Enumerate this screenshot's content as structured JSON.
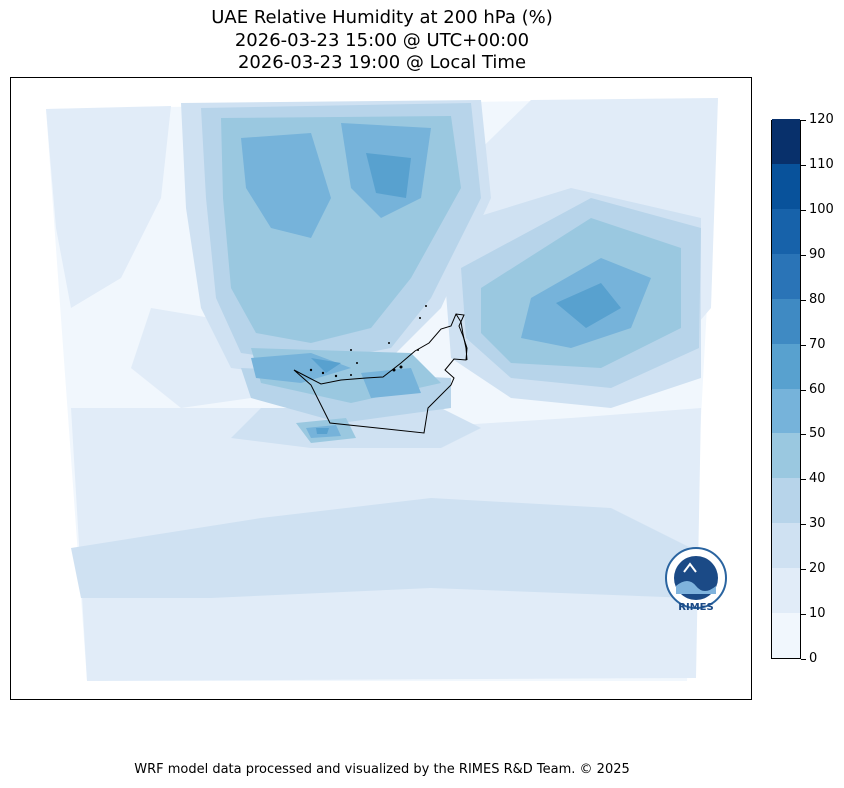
{
  "title": {
    "line1": "UAE Relative Humidity at 200 hPa (%)",
    "line2": "2026-03-23 15:00 @ UTC+00:00",
    "line3": "2026-03-23 19:00 @ Local Time"
  },
  "colorbar": {
    "ticks": [
      "120",
      "110",
      "100",
      "90",
      "80",
      "70",
      "60",
      "50",
      "40",
      "30",
      "20",
      "10",
      "0"
    ],
    "levels": [
      0,
      10,
      20,
      30,
      40,
      50,
      60,
      70,
      80,
      90,
      100,
      110,
      120
    ],
    "colors": [
      "#f1f7fd",
      "#e1ecf8",
      "#cfe1f2",
      "#b7d4ea",
      "#9ac8e0",
      "#76b3da",
      "#58a1cf",
      "#3f8ac3",
      "#2a74b7",
      "#1762aa",
      "#08529b",
      "#08306b"
    ]
  },
  "logo": {
    "text": "RIMES"
  },
  "credit": "WRF model data processed and visualized by the RIMES R&D Team. © 2025"
}
